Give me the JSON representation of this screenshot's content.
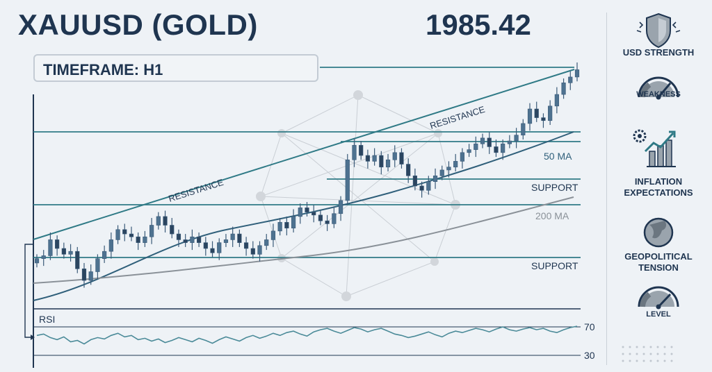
{
  "header": {
    "title": "XAUUSD (GOLD)",
    "price": "1985.42",
    "timeframe": "TIMEFRAME: H1"
  },
  "colors": {
    "background": "#eef2f6",
    "text": "#1f3550",
    "teal": "#2f7a86",
    "candle": "#3a5a78",
    "ma50": "#2f5f7a",
    "ma200": "#8a9198"
  },
  "sidebar": {
    "items": [
      {
        "label": "USD STRENGTH",
        "icon": "shield-icon"
      },
      {
        "label": "WEAKNESS",
        "icon": "gauge-icon"
      },
      {
        "label": "INFLATION EXPECTATIONS",
        "icon": "inflation-chart-icon"
      },
      {
        "label": "GEOPOLITICAL TENSION",
        "icon": "globe-icon"
      },
      {
        "label": "LEVEL",
        "icon": "gauge-icon"
      }
    ]
  },
  "chart_data": [
    {
      "type": "candlestick",
      "labels": {
        "resistance_left": "RESISTANCE",
        "resistance_right": "RESISTANCE",
        "support_upper": "SUPPORT",
        "support_lower": "SUPPORT",
        "ma50": "50 MA",
        "ma200": "200 MA"
      },
      "closes": [
        1855,
        1857,
        1868,
        1862,
        1858,
        1860,
        1848,
        1840,
        1846,
        1855,
        1860,
        1868,
        1875,
        1872,
        1870,
        1866,
        1870,
        1878,
        1884,
        1878,
        1872,
        1868,
        1866,
        1870,
        1866,
        1862,
        1859,
        1866,
        1868,
        1872,
        1866,
        1862,
        1858,
        1864,
        1868,
        1874,
        1880,
        1876,
        1884,
        1890,
        1887,
        1885,
        1881,
        1879,
        1886,
        1895,
        1923,
        1933,
        1926,
        1922,
        1926,
        1918,
        1923,
        1928,
        1920,
        1912,
        1905,
        1902,
        1908,
        1912,
        1916,
        1918,
        1922,
        1928,
        1930,
        1934,
        1938,
        1932,
        1928,
        1934,
        1936,
        1940,
        1948,
        1958,
        1952,
        1950,
        1960,
        1968,
        1976,
        1980,
        1985
      ]
    },
    {
      "type": "line",
      "name": "RSI",
      "reference_levels": [
        70,
        30
      ],
      "values": [
        58,
        60,
        55,
        52,
        56,
        49,
        51,
        46,
        52,
        55,
        53,
        58,
        61,
        56,
        58,
        52,
        54,
        50,
        53,
        48,
        51,
        55,
        52,
        49,
        54,
        51,
        47,
        52,
        56,
        53,
        50,
        55,
        58,
        54,
        57,
        61,
        58,
        62,
        64,
        60,
        57,
        63,
        66,
        68,
        64,
        61,
        65,
        69,
        67,
        63,
        66,
        68,
        64,
        60,
        58,
        55,
        57,
        60,
        63,
        59,
        56,
        61,
        64,
        62,
        65,
        68,
        66,
        63,
        67,
        70,
        66,
        64,
        67,
        69,
        66,
        68,
        64,
        62,
        66,
        69,
        71
      ]
    }
  ]
}
